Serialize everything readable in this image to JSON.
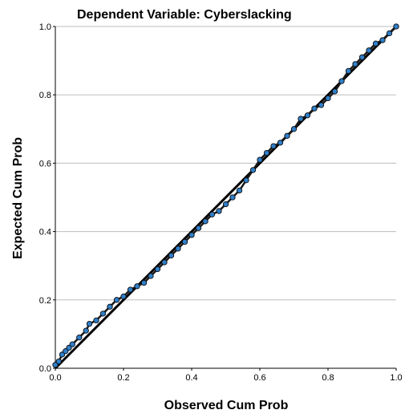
{
  "chart_data": {
    "type": "scatter",
    "title": "Dependent Variable: Cyberslacking",
    "xlabel": "Observed Cum Prob",
    "ylabel": "Expected Cum Prob",
    "xlim": [
      0,
      1
    ],
    "ylim": [
      0,
      1
    ],
    "x_ticks": [
      "0.0",
      "0.2",
      "0.4",
      "0.6",
      "0.8",
      "1.0"
    ],
    "y_ticks": [
      "0.0",
      "0.2",
      "0.4",
      "0.6",
      "0.8",
      "1.0"
    ],
    "grid": "horizontal",
    "reference_line": {
      "from": [
        0,
        0
      ],
      "to": [
        1,
        1
      ]
    },
    "colors": {
      "point_fill": "#2f7fc9",
      "point_edge": "#0a0a0a",
      "line": "#000000",
      "grid": "#bdbdbd"
    },
    "series": [
      {
        "x": [
          0.0,
          0.01,
          0.02,
          0.03,
          0.04,
          0.05,
          0.07,
          0.09,
          0.1,
          0.12,
          0.14,
          0.16,
          0.18,
          0.2,
          0.22,
          0.24,
          0.26,
          0.28,
          0.3,
          0.32,
          0.34,
          0.36,
          0.38,
          0.4,
          0.42,
          0.44,
          0.46,
          0.48,
          0.5,
          0.52,
          0.54,
          0.56,
          0.58,
          0.6,
          0.62,
          0.64,
          0.66,
          0.68,
          0.7,
          0.72,
          0.74,
          0.76,
          0.78,
          0.8,
          0.82,
          0.84,
          0.86,
          0.88,
          0.9,
          0.92,
          0.94,
          0.96,
          0.98,
          1.0
        ],
        "y": [
          0.01,
          0.02,
          0.04,
          0.05,
          0.06,
          0.07,
          0.09,
          0.11,
          0.13,
          0.14,
          0.16,
          0.18,
          0.2,
          0.21,
          0.23,
          0.24,
          0.25,
          0.27,
          0.29,
          0.31,
          0.33,
          0.35,
          0.37,
          0.39,
          0.41,
          0.43,
          0.45,
          0.46,
          0.48,
          0.5,
          0.52,
          0.55,
          0.58,
          0.61,
          0.63,
          0.65,
          0.66,
          0.68,
          0.7,
          0.73,
          0.74,
          0.76,
          0.77,
          0.79,
          0.81,
          0.84,
          0.87,
          0.89,
          0.91,
          0.93,
          0.95,
          0.96,
          0.98,
          1.0
        ]
      }
    ]
  }
}
